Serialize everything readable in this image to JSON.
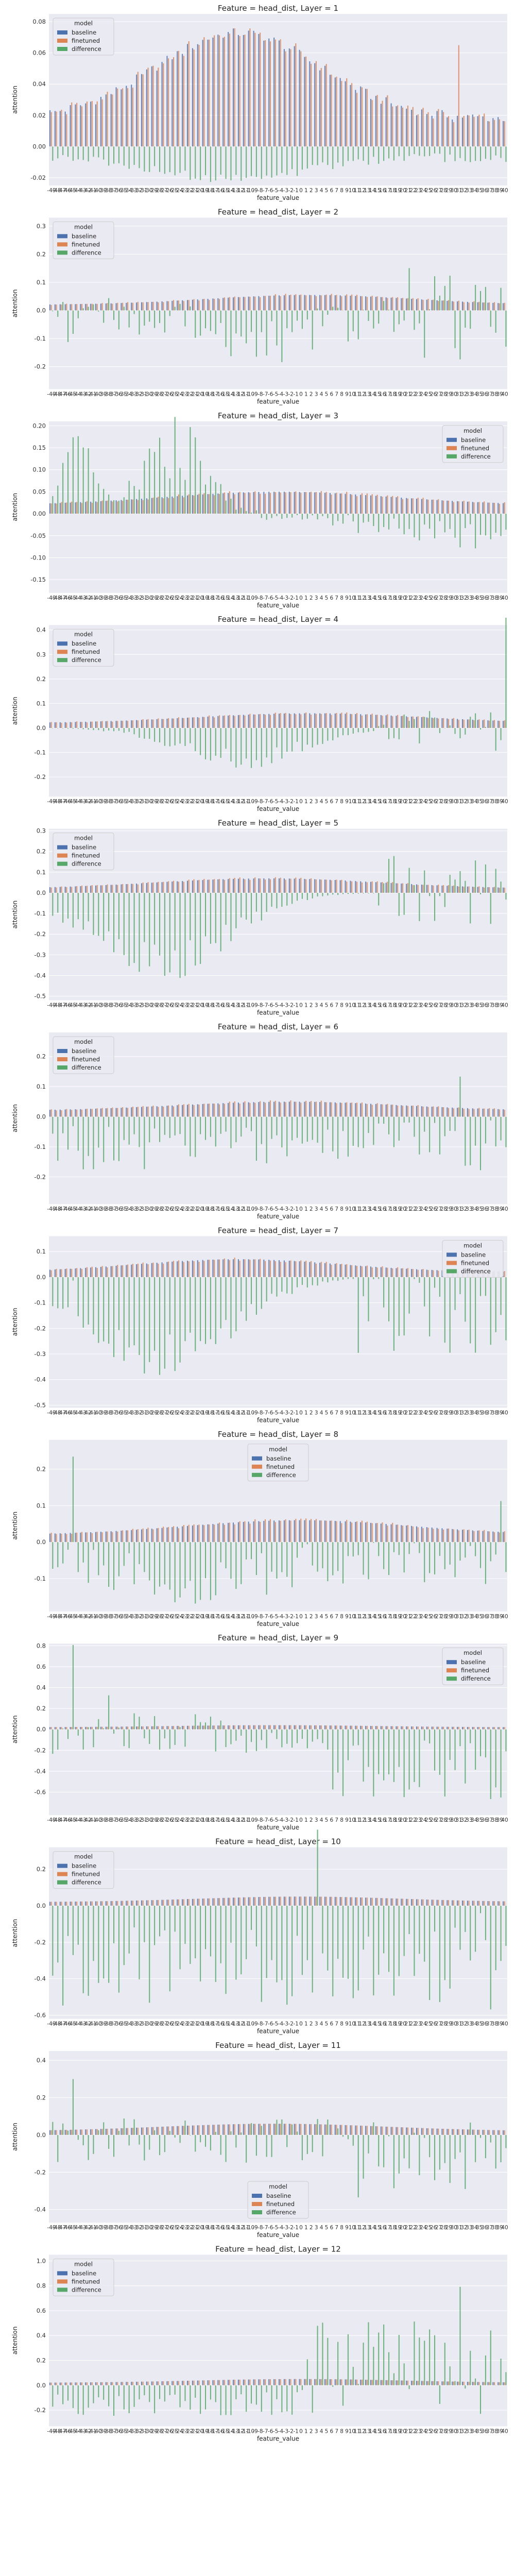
{
  "figure": {
    "feature_values": [
      -49,
      -48,
      -47,
      -46,
      -45,
      -44,
      -43,
      -42,
      -41,
      -40,
      -39,
      -38,
      -37,
      -36,
      -35,
      -34,
      -33,
      -32,
      -31,
      -30,
      -29,
      -28,
      -27,
      -26,
      -25,
      -24,
      -23,
      -22,
      -21,
      -20,
      -19,
      -18,
      -17,
      -16,
      -15,
      -14,
      -13,
      -12,
      -11,
      -10,
      -9,
      -8,
      -7,
      -6,
      -5,
      -4,
      -3,
      -2,
      -1,
      0,
      1,
      2,
      3,
      4,
      5,
      6,
      7,
      8,
      9,
      10,
      11,
      12,
      13,
      14,
      15,
      16,
      17,
      18,
      19,
      20,
      21,
      22,
      23,
      24,
      25,
      26,
      27,
      28,
      29,
      30,
      31,
      32,
      33,
      34,
      35,
      36,
      37,
      38,
      39,
      40
    ],
    "colors": {
      "baseline": "#4c72b0",
      "finetuned": "#dd8452",
      "difference": "#55a868"
    }
  },
  "chart_data": [
    {
      "type": "bar",
      "title": "Feature = head_dist, Layer = 1",
      "xlabel": "feature_value",
      "ylabel": "attention",
      "ylim": [
        -0.025,
        0.085
      ],
      "yticks": [
        -0.02,
        0.0,
        0.02,
        0.04,
        0.06,
        0.08
      ],
      "yfmt": 2,
      "legend": {
        "title": "model",
        "placement": "top-left",
        "entries": [
          "baseline",
          "finetuned",
          "difference"
        ]
      },
      "shape": "L1"
    },
    {
      "type": "bar",
      "title": "Feature = head_dist, Layer = 2",
      "xlabel": "feature_value",
      "ylabel": "attention",
      "ylim": [
        -0.28,
        0.33
      ],
      "yticks": [
        -0.2,
        -0.1,
        0.0,
        0.1,
        0.2,
        0.3
      ],
      "yfmt": 1,
      "legend": {
        "title": "model",
        "placement": "top-left",
        "entries": [
          "baseline",
          "finetuned",
          "difference"
        ]
      },
      "shape": "L2"
    },
    {
      "type": "bar",
      "title": "Feature = head_dist, Layer = 3",
      "xlabel": "feature_value",
      "ylabel": "attention",
      "ylim": [
        -0.18,
        0.21
      ],
      "yticks": [
        -0.15,
        -0.1,
        -0.05,
        0.0,
        0.05,
        0.1,
        0.15,
        0.2
      ],
      "yfmt": 2,
      "legend": {
        "title": "model",
        "placement": "top-right",
        "entries": [
          "baseline",
          "finetuned",
          "difference"
        ]
      },
      "shape": "L3"
    },
    {
      "type": "bar",
      "title": "Feature = head_dist, Layer = 4",
      "xlabel": "feature_value",
      "ylabel": "attention",
      "ylim": [
        -0.28,
        0.42
      ],
      "yticks": [
        -0.2,
        -0.1,
        0.0,
        0.1,
        0.2,
        0.3,
        0.4
      ],
      "yfmt": 1,
      "legend": {
        "title": "model",
        "placement": "top-left",
        "entries": [
          "baseline",
          "finetuned",
          "difference"
        ]
      },
      "shape": "L4"
    },
    {
      "type": "bar",
      "title": "Feature = head_dist, Layer = 5",
      "xlabel": "feature_value",
      "ylabel": "attention",
      "ylim": [
        -0.52,
        0.31
      ],
      "yticks": [
        -0.5,
        -0.4,
        -0.3,
        -0.2,
        -0.1,
        0.0,
        0.1,
        0.2,
        0.3
      ],
      "yfmt": 1,
      "legend": {
        "title": "model",
        "placement": "top-left",
        "entries": [
          "baseline",
          "finetuned",
          "difference"
        ]
      },
      "shape": "L5"
    },
    {
      "type": "bar",
      "title": "Feature = head_dist, Layer = 6",
      "xlabel": "feature_value",
      "ylabel": "attention",
      "ylim": [
        -0.29,
        0.28
      ],
      "yticks": [
        -0.2,
        -0.1,
        0.0,
        0.1,
        0.2
      ],
      "yfmt": 1,
      "legend": {
        "title": "model",
        "placement": "top-left",
        "entries": [
          "baseline",
          "finetuned",
          "difference"
        ]
      },
      "shape": "L6"
    },
    {
      "type": "bar",
      "title": "Feature = head_dist, Layer = 7",
      "xlabel": "feature_value",
      "ylabel": "attention",
      "ylim": [
        -0.51,
        0.16
      ],
      "yticks": [
        -0.5,
        -0.4,
        -0.3,
        -0.2,
        -0.1,
        0.0,
        0.1
      ],
      "yfmt": 1,
      "legend": {
        "title": "model",
        "placement": "top-right",
        "entries": [
          "baseline",
          "finetuned",
          "difference"
        ]
      },
      "shape": "L7"
    },
    {
      "type": "bar",
      "title": "Feature = head_dist, Layer = 8",
      "xlabel": "feature_value",
      "ylabel": "attention",
      "ylim": [
        -0.19,
        0.28
      ],
      "yticks": [
        -0.1,
        0.0,
        0.1,
        0.2
      ],
      "yfmt": 1,
      "legend": {
        "title": "model",
        "placement": "top-center",
        "entries": [
          "baseline",
          "finetuned",
          "difference"
        ]
      },
      "shape": "L8"
    },
    {
      "type": "bar",
      "title": "Feature = head_dist, Layer = 9",
      "xlabel": "feature_value",
      "ylabel": "attention",
      "ylim": [
        -0.82,
        0.82
      ],
      "yticks": [
        -0.6,
        -0.4,
        -0.2,
        0.0,
        0.2,
        0.4,
        0.6,
        0.8
      ],
      "yfmt": 1,
      "legend": {
        "title": "model",
        "placement": "top-right",
        "entries": [
          "baseline",
          "finetuned",
          "difference"
        ]
      },
      "shape": "L9"
    },
    {
      "type": "bar",
      "title": "Feature = head_dist, Layer = 10",
      "xlabel": "feature_value",
      "ylabel": "attention",
      "ylim": [
        -0.62,
        0.32
      ],
      "yticks": [
        -0.6,
        -0.4,
        -0.2,
        0.0,
        0.2
      ],
      "yfmt": 1,
      "legend": {
        "title": "model",
        "placement": "top-left",
        "entries": [
          "baseline",
          "finetuned",
          "difference"
        ]
      },
      "shape": "L10"
    },
    {
      "type": "bar",
      "title": "Feature = head_dist, Layer = 11",
      "xlabel": "feature_value",
      "ylabel": "attention",
      "ylim": [
        -0.47,
        0.45
      ],
      "yticks": [
        -0.4,
        -0.2,
        0.0,
        0.2,
        0.4
      ],
      "yfmt": 1,
      "legend": {
        "title": "model",
        "placement": "bottom-center",
        "entries": [
          "baseline",
          "finetuned",
          "difference"
        ]
      },
      "shape": "L11"
    },
    {
      "type": "bar",
      "title": "Feature = head_dist, Layer = 12",
      "xlabel": "feature_value",
      "ylabel": "attention",
      "ylim": [
        -0.33,
        1.05
      ],
      "yticks": [
        -0.2,
        0.0,
        0.2,
        0.4,
        0.6,
        0.8,
        1.0
      ],
      "yfmt": 1,
      "legend": {
        "title": "model",
        "placement": "top-left",
        "entries": [
          "baseline",
          "finetuned",
          "difference"
        ]
      },
      "shape": "L12"
    }
  ]
}
